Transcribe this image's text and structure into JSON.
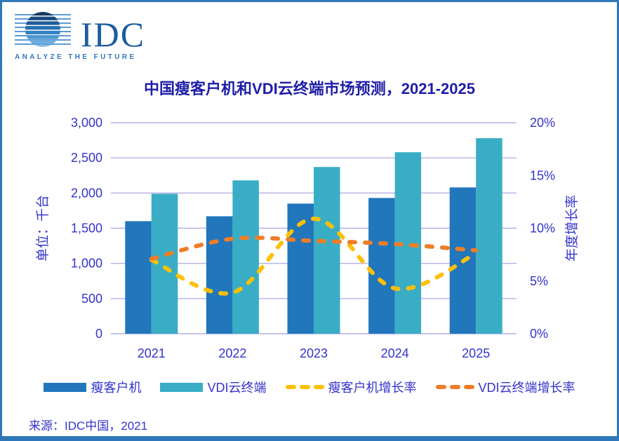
{
  "logo": {
    "brand": "IDC",
    "tagline": "ANALYZE THE FUTURE"
  },
  "title": "中国瘦客户机和VDI云终端市场预测，2021-2025",
  "source": "来源：IDC中国，2021",
  "colors": {
    "border": "#2E77B9",
    "title_text": "#1E1EA8",
    "axis_text": "#3434CC",
    "gridline": "#B4B2E4",
    "bar_thin_client": "#2176BC",
    "bar_vdi": "#39ADC5",
    "line_thin_client_growth": "#FDC008",
    "line_vdi_growth": "#EF7D28",
    "logo_brand": "#1B5C9E",
    "logo_tagline": "#2E79BE"
  },
  "chart_data": {
    "type": "combo-bar-line",
    "title": "中国瘦客户机和VDI云终端市场预测，2021-2025",
    "categories": [
      "2021",
      "2022",
      "2023",
      "2024",
      "2025"
    ],
    "left_axis": {
      "label": "单位：千台",
      "ticks": [
        "0",
        "500",
        "1,000",
        "1,500",
        "2,000",
        "2,500",
        "3,000"
      ],
      "min": 0,
      "max": 3000,
      "grid": true
    },
    "right_axis": {
      "label": "年度增长率",
      "ticks": [
        "0%",
        "5%",
        "10%",
        "15%",
        "20%"
      ],
      "min_pct": 0,
      "max_pct": 20
    },
    "series": [
      {
        "name": "瘦客户机",
        "type": "bar",
        "axis": "left",
        "color": "#2176BC",
        "values": [
          1600,
          1670,
          1850,
          1930,
          2080
        ]
      },
      {
        "name": "VDI云终端",
        "type": "bar",
        "axis": "left",
        "color": "#39ADC5",
        "values": [
          1990,
          2180,
          2370,
          2580,
          2780
        ]
      },
      {
        "name": "瘦客户机增长率",
        "type": "line",
        "axis": "right",
        "dashed": true,
        "color": "#FDC008",
        "values_pct": [
          7.0,
          3.9,
          10.9,
          4.3,
          7.6
        ]
      },
      {
        "name": "VDI云终端增长率",
        "type": "line",
        "axis": "right",
        "dashed": true,
        "color": "#EF7D28",
        "values_pct": [
          7.1,
          9.0,
          8.8,
          8.5,
          7.9
        ]
      }
    ],
    "legend_position": "bottom"
  },
  "legend": {
    "items": [
      {
        "label": "瘦客户机",
        "swatch": "bar",
        "color": "#2176BC"
      },
      {
        "label": "VDI云终端",
        "swatch": "bar",
        "color": "#39ADC5"
      },
      {
        "label": "瘦客户机增长率",
        "swatch": "dash",
        "color": "#FDC008"
      },
      {
        "label": "VDI云终端增长率",
        "swatch": "dash",
        "color": "#EF7D28"
      }
    ]
  }
}
